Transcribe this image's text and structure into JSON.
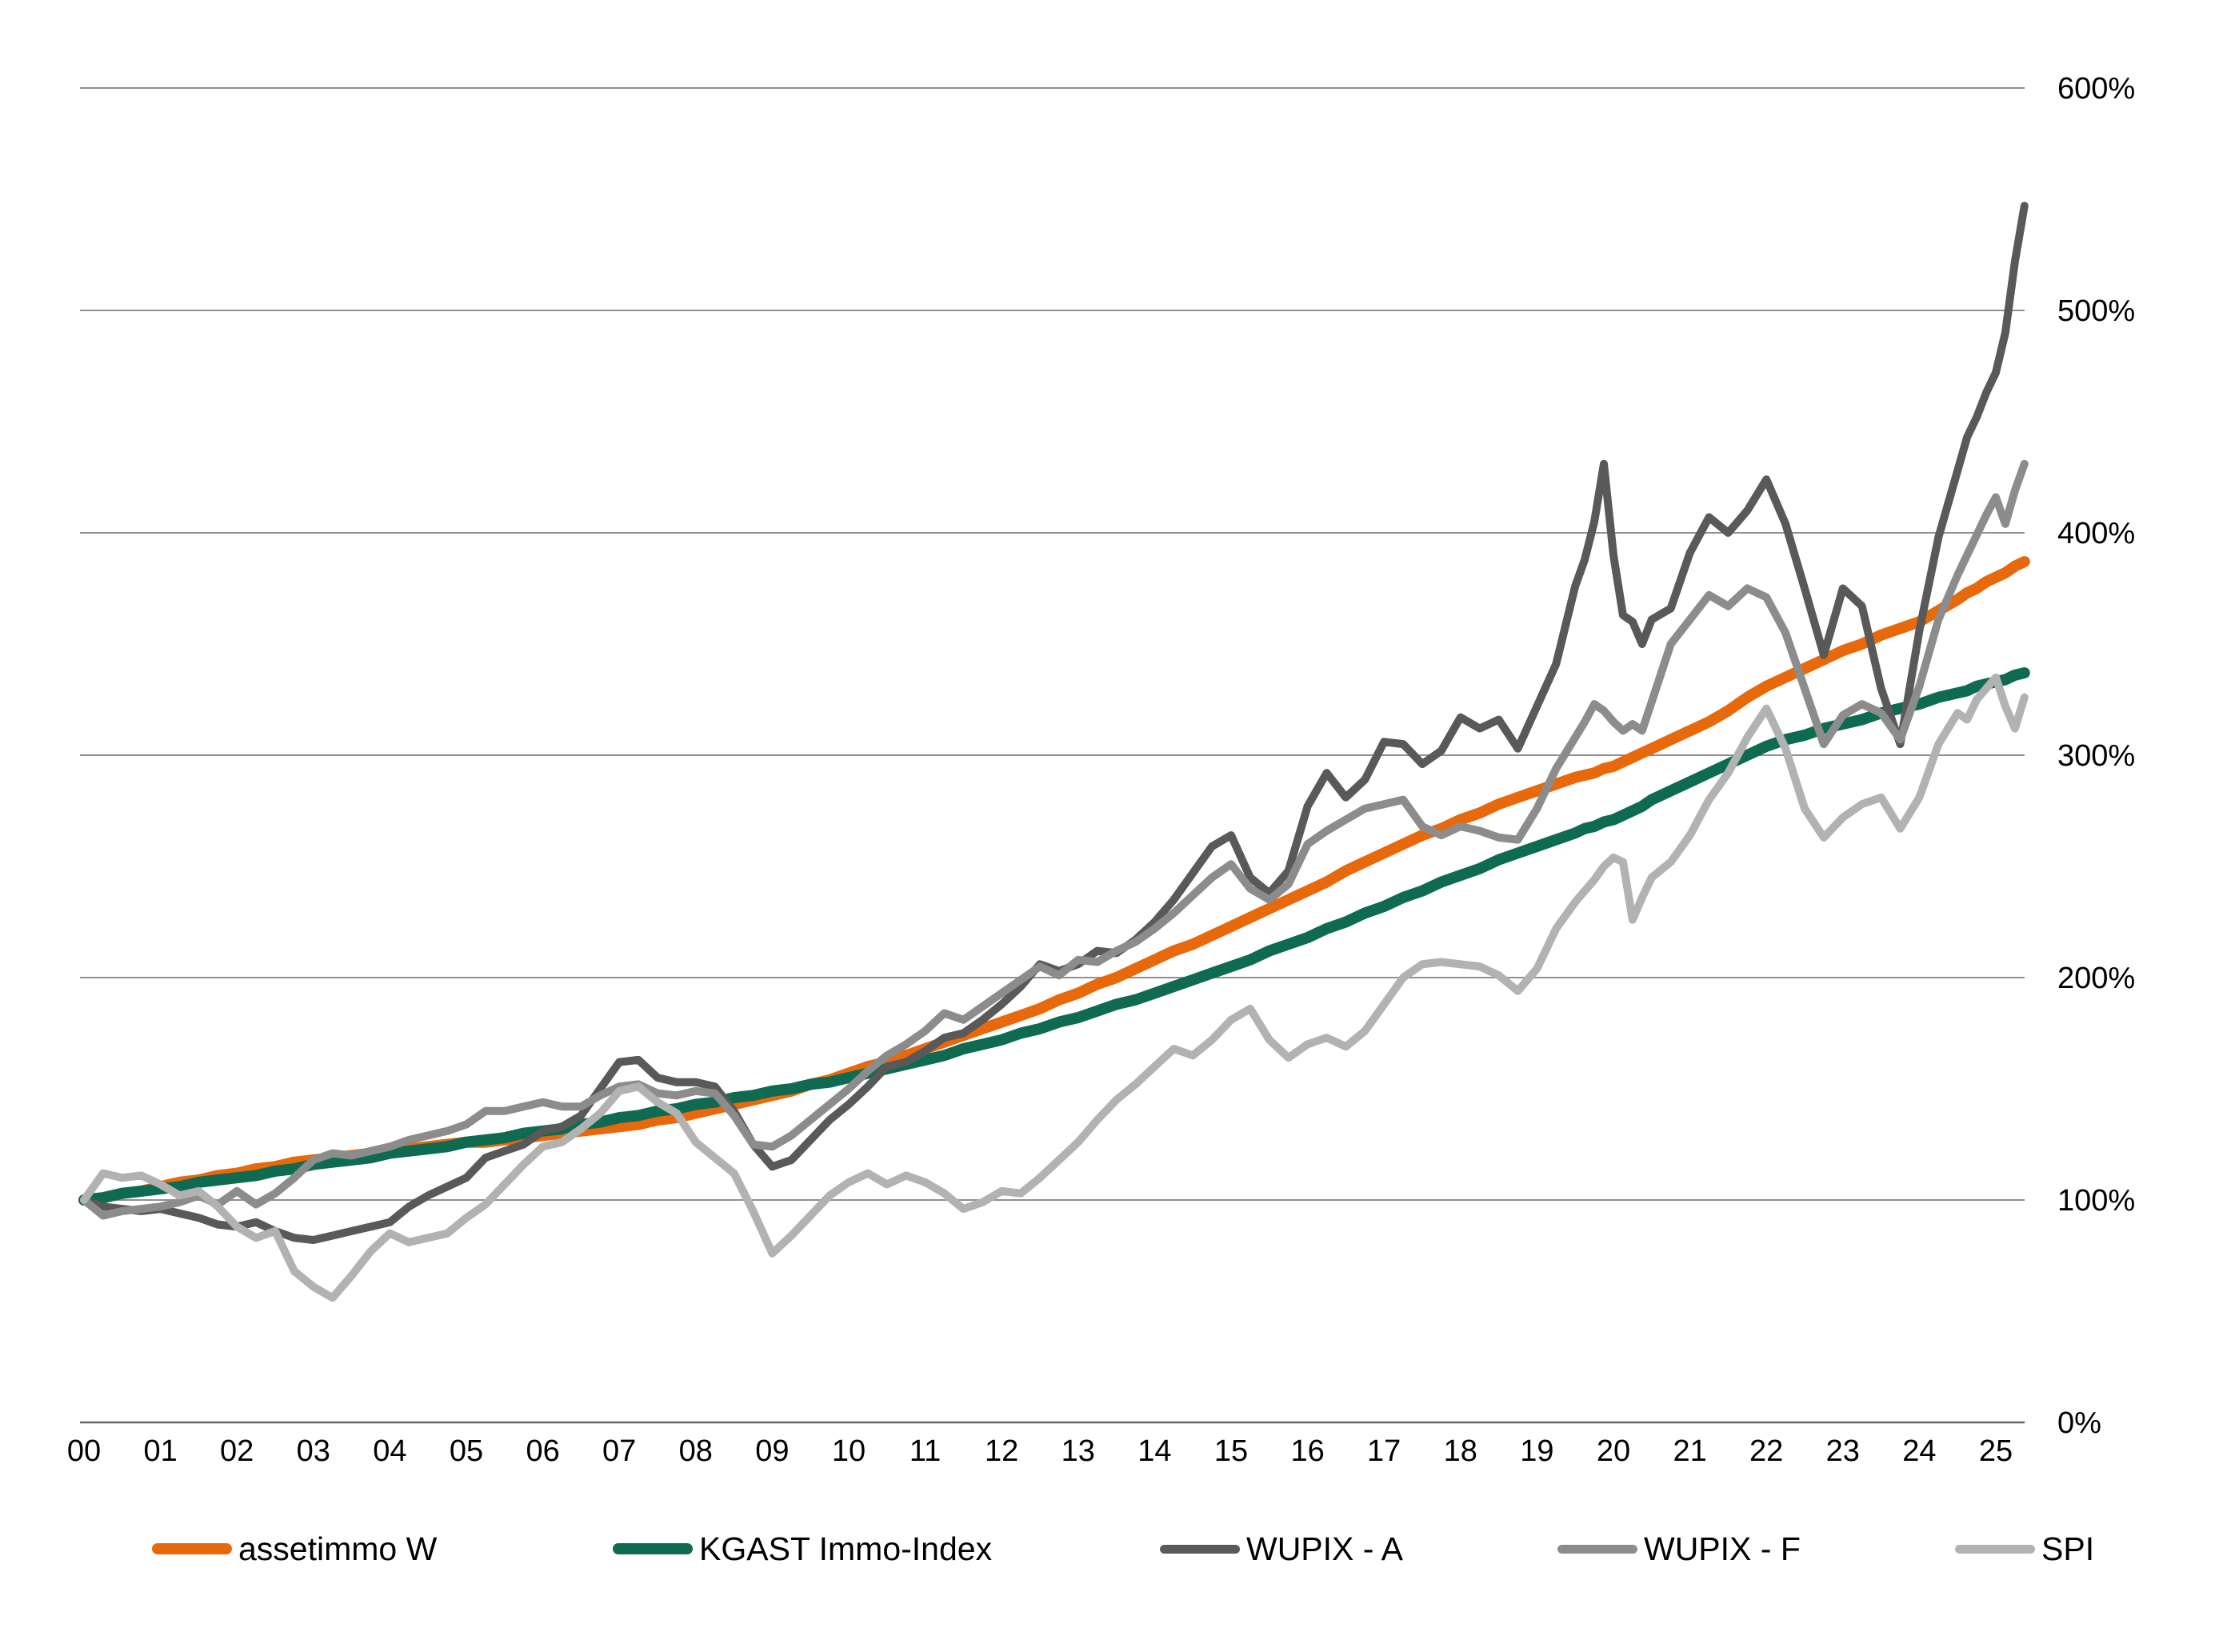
{
  "chart_data": {
    "type": "line",
    "title": "",
    "background": "#ffffff",
    "y_axis": {
      "side": "right",
      "min": 0,
      "max": 600,
      "step": 100,
      "unit": "%",
      "labels": [
        "0%",
        "100%",
        "200%",
        "300%",
        "400%",
        "500%",
        "600%"
      ],
      "gridlines": true,
      "gridline_color": "#8f8f8f",
      "baseline_color": "#666666",
      "label_color": "#000000"
    },
    "x_axis": {
      "labels": [
        "00",
        "01",
        "02",
        "03",
        "04",
        "05",
        "06",
        "07",
        "08",
        "09",
        "10",
        "11",
        "12",
        "13",
        "14",
        "15",
        "16",
        "17",
        "18",
        "19",
        "20",
        "21",
        "22",
        "23",
        "24",
        "25"
      ],
      "label_color": "#000000"
    },
    "x_years": [
      0,
      0.25,
      0.5,
      0.75,
      1,
      1.25,
      1.5,
      1.75,
      2,
      2.25,
      2.5,
      2.75,
      3,
      3.25,
      3.5,
      3.75,
      4,
      4.25,
      4.5,
      4.75,
      5,
      5.25,
      5.5,
      5.75,
      6,
      6.25,
      6.5,
      6.75,
      7,
      7.25,
      7.5,
      7.75,
      8,
      8.25,
      8.5,
      8.75,
      9,
      9.25,
      9.5,
      9.75,
      10,
      10.25,
      10.5,
      10.75,
      11,
      11.25,
      11.5,
      11.75,
      12,
      12.25,
      12.5,
      12.75,
      13,
      13.25,
      13.5,
      13.75,
      14,
      14.25,
      14.5,
      14.75,
      15,
      15.25,
      15.5,
      15.75,
      16,
      16.25,
      16.5,
      16.75,
      17,
      17.25,
      17.5,
      17.75,
      18,
      18.25,
      18.5,
      18.75,
      19,
      19.25,
      19.5,
      19.625,
      19.75,
      19.875,
      20,
      20.125,
      20.25,
      20.375,
      20.5,
      20.75,
      21,
      21.25,
      21.5,
      21.75,
      22,
      22.25,
      22.5,
      22.75,
      23,
      23.25,
      23.5,
      23.75,
      24,
      24.25,
      24.5,
      24.625,
      24.75,
      24.875,
      25,
      25.125,
      25.25,
      25.375
    ],
    "series": [
      {
        "name": "assetimmo W",
        "color": "#E8680C",
        "width": 14,
        "values": [
          100,
          101,
          103,
          104,
          106,
          108,
          109,
          111,
          112,
          114,
          115,
          117,
          118,
          119,
          120,
          121,
          122,
          123,
          124,
          125,
          126,
          126,
          127,
          128,
          129,
          130,
          131,
          132,
          133,
          134,
          136,
          137,
          139,
          141,
          143,
          145,
          147,
          149,
          152,
          154,
          157,
          160,
          162,
          165,
          168,
          171,
          174,
          177,
          180,
          183,
          186,
          190,
          193,
          197,
          200,
          204,
          208,
          212,
          215,
          219,
          223,
          227,
          231,
          235,
          239,
          243,
          248,
          252,
          256,
          260,
          264,
          267,
          271,
          274,
          278,
          281,
          284,
          287,
          290,
          291,
          292,
          294,
          295,
          297,
          299,
          301,
          303,
          307,
          311,
          315,
          320,
          326,
          331,
          335,
          339,
          343,
          347,
          350,
          354,
          357,
          360,
          365,
          370,
          373,
          375,
          378,
          380,
          382,
          385,
          387
        ]
      },
      {
        "name": "KGAST Immo-Index",
        "color": "#0E6B51",
        "width": 14,
        "values": [
          100,
          101,
          103,
          104,
          105,
          106,
          108,
          109,
          110,
          111,
          113,
          114,
          116,
          117,
          118,
          119,
          121,
          122,
          123,
          124,
          126,
          127,
          128,
          130,
          131,
          132,
          134,
          135,
          137,
          138,
          140,
          141,
          143,
          144,
          146,
          147,
          149,
          150,
          152,
          153,
          155,
          157,
          159,
          161,
          163,
          165,
          168,
          170,
          172,
          175,
          177,
          180,
          182,
          185,
          188,
          190,
          193,
          196,
          199,
          202,
          205,
          208,
          212,
          215,
          218,
          222,
          225,
          229,
          232,
          236,
          239,
          243,
          246,
          249,
          253,
          256,
          259,
          262,
          265,
          267,
          268,
          270,
          271,
          273,
          275,
          277,
          280,
          284,
          288,
          292,
          296,
          300,
          304,
          307,
          309,
          312,
          314,
          316,
          319,
          321,
          323,
          326,
          328,
          329,
          331,
          332,
          333,
          334,
          336,
          337
        ]
      },
      {
        "name": "WUPIX - A",
        "color": "#595959",
        "width": 10,
        "values": [
          100,
          97,
          96,
          95,
          96,
          94,
          92,
          89,
          88,
          90,
          86,
          83,
          82,
          84,
          86,
          88,
          90,
          97,
          102,
          106,
          110,
          119,
          122,
          125,
          131,
          133,
          138,
          150,
          162,
          163,
          155,
          153,
          153,
          151,
          140,
          125,
          115,
          118,
          127,
          136,
          143,
          151,
          160,
          162,
          167,
          173,
          175,
          181,
          188,
          196,
          206,
          203,
          206,
          212,
          211,
          217,
          225,
          235,
          247,
          259,
          264,
          245,
          238,
          248,
          277,
          292,
          281,
          289,
          306,
          305,
          296,
          302,
          317,
          312,
          316,
          303,
          322,
          341,
          376,
          388,
          405,
          431,
          390,
          363,
          360,
          350,
          361,
          366,
          391,
          407,
          400,
          410,
          424,
          404,
          375,
          345,
          375,
          367,
          330,
          305,
          356,
          398,
          428,
          443,
          452,
          463,
          472,
          490,
          522,
          547
        ]
      },
      {
        "name": "WUPIX - F",
        "color": "#8C8C8C",
        "width": 10,
        "values": [
          100,
          93,
          95,
          96,
          97,
          99,
          102,
          98,
          104,
          98,
          103,
          110,
          118,
          121,
          120,
          122,
          124,
          127,
          129,
          131,
          134,
          140,
          140,
          142,
          144,
          142,
          142,
          147,
          151,
          152,
          148,
          147,
          149,
          148,
          138,
          125,
          124,
          129,
          136,
          143,
          150,
          158,
          165,
          170,
          176,
          184,
          181,
          187,
          193,
          199,
          205,
          201,
          208,
          207,
          212,
          216,
          222,
          229,
          237,
          245,
          251,
          240,
          235,
          242,
          260,
          266,
          271,
          276,
          278,
          280,
          268,
          264,
          268,
          266,
          263,
          262,
          276,
          294,
          308,
          315,
          323,
          320,
          315,
          311,
          314,
          311,
          324,
          350,
          361,
          372,
          367,
          375,
          371,
          355,
          330,
          305,
          318,
          323,
          319,
          307,
          331,
          361,
          381,
          390,
          399,
          408,
          416,
          404,
          419,
          431
        ]
      },
      {
        "name": "SPI",
        "color": "#B2B2B2",
        "width": 10,
        "values": [
          100,
          112,
          110,
          111,
          107,
          102,
          104,
          97,
          88,
          83,
          86,
          68,
          61,
          56,
          66,
          77,
          85,
          81,
          83,
          85,
          92,
          98,
          107,
          116,
          124,
          126,
          132,
          139,
          149,
          151,
          144,
          139,
          126,
          119,
          112,
          95,
          76,
          84,
          93,
          102,
          108,
          112,
          107,
          111,
          108,
          103,
          96,
          99,
          104,
          103,
          110,
          118,
          126,
          136,
          145,
          152,
          160,
          168,
          165,
          172,
          181,
          186,
          172,
          164,
          170,
          173,
          169,
          176,
          188,
          200,
          206,
          207,
          206,
          205,
          201,
          194,
          204,
          222,
          234,
          239,
          244,
          250,
          254,
          252,
          226,
          236,
          245,
          252,
          264,
          280,
          292,
          308,
          321,
          303,
          276,
          263,
          272,
          278,
          281,
          267,
          281,
          305,
          319,
          316,
          325,
          330,
          335,
          322,
          312,
          326
        ]
      }
    ],
    "legend": [
      {
        "label": "assetimmo W",
        "color": "#E8680C",
        "swatch_height": 14
      },
      {
        "label": "KGAST Immo-Index",
        "color": "#0E6B51",
        "swatch_height": 14
      },
      {
        "label": "WUPIX - A",
        "color": "#595959",
        "swatch_height": 11
      },
      {
        "label": "WUPIX - F",
        "color": "#8C8C8C",
        "swatch_height": 11
      },
      {
        "label": "SPI",
        "color": "#B2B2B2",
        "swatch_height": 11
      }
    ],
    "layout_note": "indexed performance, start = 100% at year 00, data to mid-25"
  }
}
